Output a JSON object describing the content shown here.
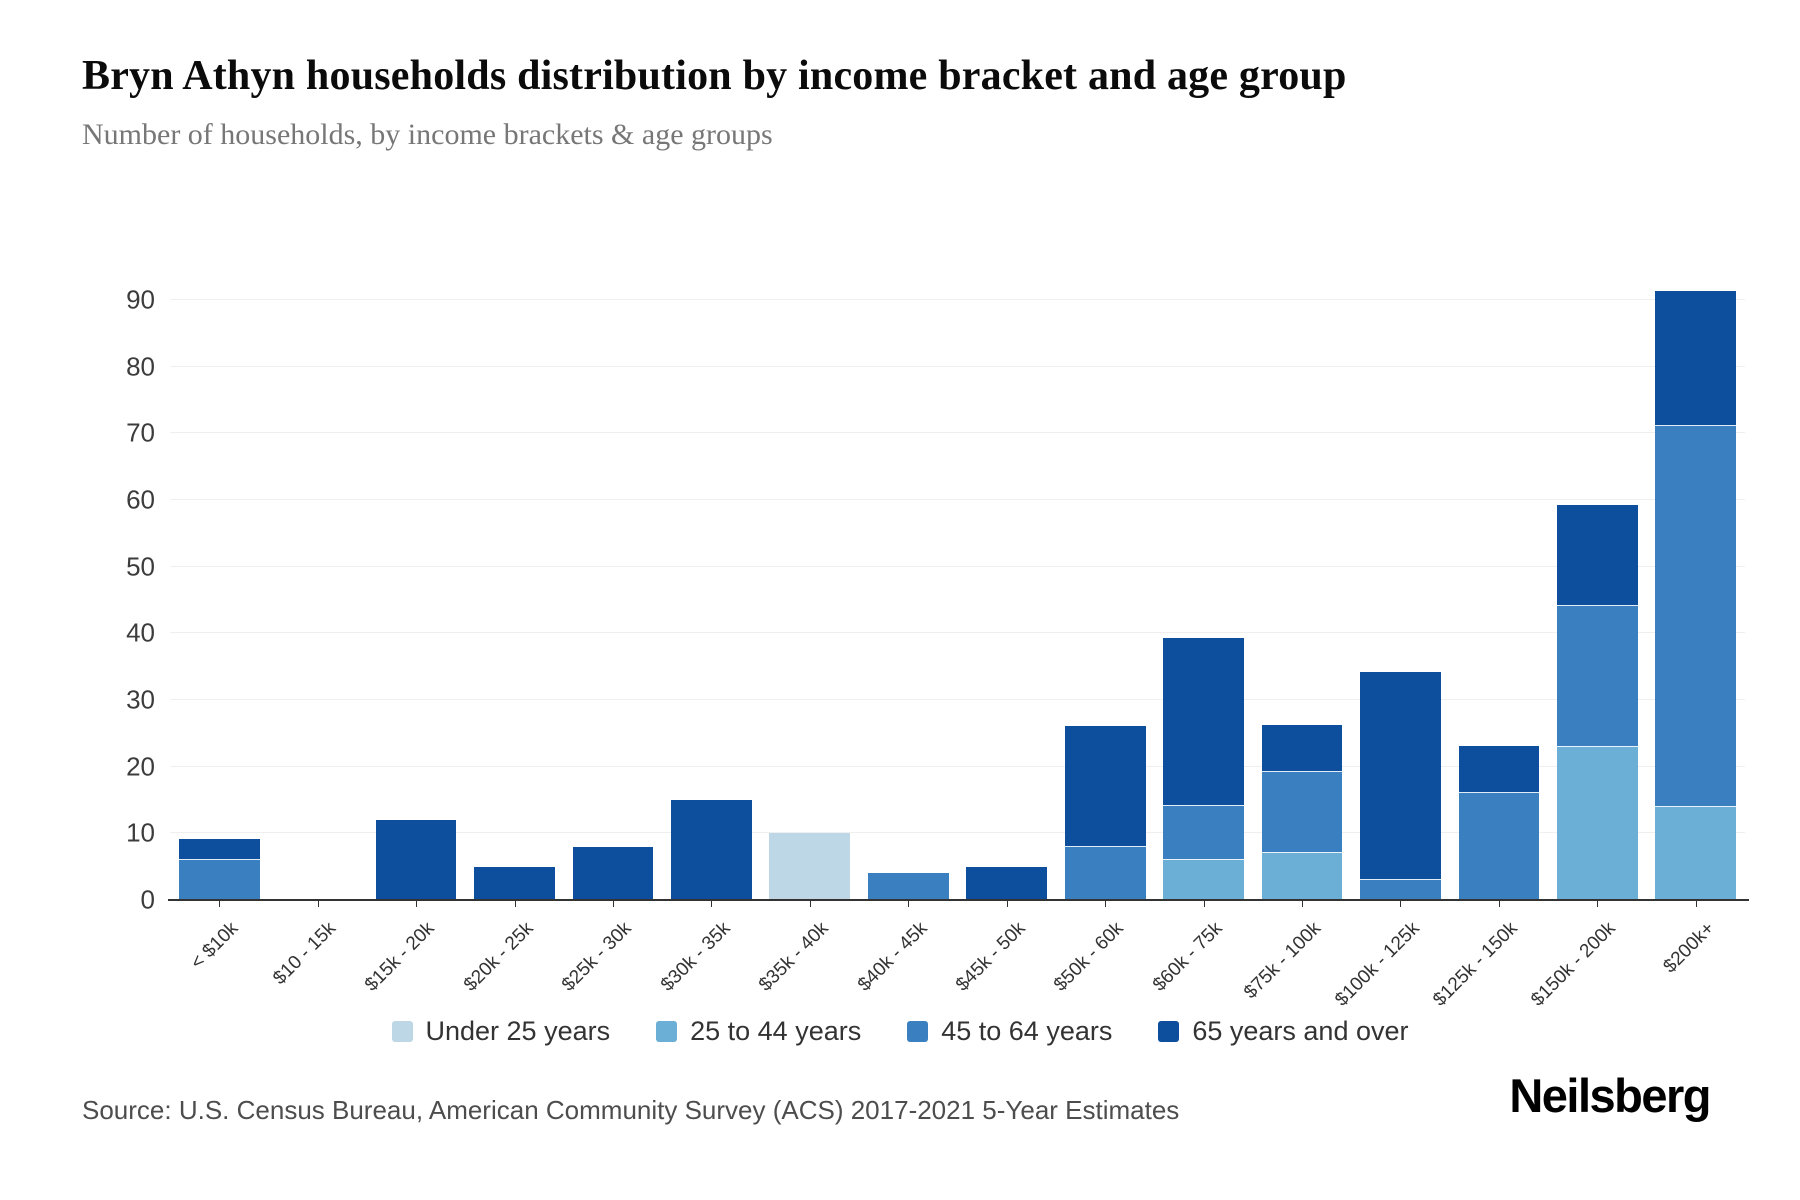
{
  "header": {
    "title": "Bryn Athyn households distribution by income bracket and age group",
    "subtitle": "Number of households, by income brackets & age groups"
  },
  "chart_data": {
    "type": "bar",
    "stacked": true,
    "title": "Bryn Athyn households distribution by income bracket and age group",
    "xlabel": "",
    "ylabel": "",
    "ylim": [
      0,
      90
    ],
    "ytick_step": 10,
    "grid": true,
    "legend_position": "bottom",
    "categories": [
      "< $10k",
      "$10 - 15k",
      "$15k - 20k",
      "$20k - 25k",
      "$25k - 30k",
      "$30k - 35k",
      "$35k - 40k",
      "$40k - 45k",
      "$45k - 50k",
      "$50k - 60k",
      "$60k - 75k",
      "$75k - 100k",
      "$100k - 125k",
      "$125k - 150k",
      "$150k - 200k",
      "$200k+"
    ],
    "series": [
      {
        "name": "Under 25 years",
        "color": "#bdd7e7",
        "values": [
          0,
          0,
          0,
          0,
          0,
          0,
          10,
          0,
          0,
          0,
          0,
          0,
          0,
          0,
          0,
          0
        ]
      },
      {
        "name": "25 to 44 years",
        "color": "#6baed6",
        "values": [
          0,
          0,
          0,
          0,
          0,
          0,
          0,
          0,
          0,
          0,
          6,
          7,
          0,
          0,
          23,
          14
        ]
      },
      {
        "name": "45 to 64 years",
        "color": "#3a80c1",
        "values": [
          6,
          0,
          0,
          0,
          0,
          0,
          0,
          4,
          0,
          8,
          8,
          12,
          3,
          16,
          21,
          57
        ]
      },
      {
        "name": "65 years and over",
        "color": "#0d4e9d",
        "values": [
          3,
          0,
          12,
          5,
          8,
          15,
          0,
          0,
          5,
          18,
          25,
          7,
          31,
          7,
          15,
          20
        ]
      }
    ],
    "totals": [
      9,
      0,
      12,
      5,
      8,
      15,
      10,
      4,
      5,
      26,
      39,
      26,
      34,
      23,
      59,
      91
    ]
  },
  "footer": {
    "source": "Source: U.S. Census Bureau, American Community Survey (ACS) 2017-2021 5-Year Estimates",
    "brand": "Neilsberg"
  }
}
